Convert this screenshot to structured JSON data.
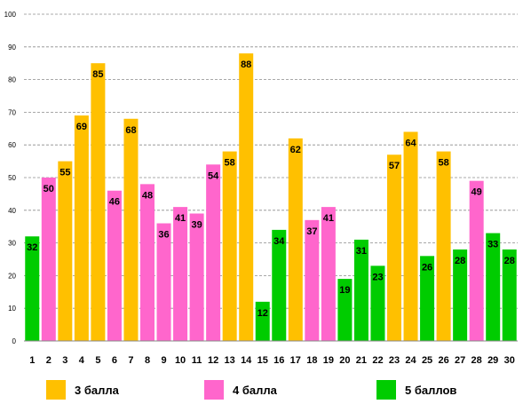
{
  "chart_data": {
    "type": "bar",
    "title": "",
    "xlabel": "",
    "ylabel": "",
    "ylim": [
      0,
      100
    ],
    "yticks": [
      0,
      10,
      20,
      30,
      40,
      50,
      60,
      70,
      80,
      90,
      100
    ],
    "grid": "horizontal dashed",
    "legend_position": "bottom",
    "categories": [
      "1",
      "2",
      "3",
      "4",
      "5",
      "6",
      "7",
      "8",
      "9",
      "10",
      "11",
      "12",
      "13",
      "14",
      "15",
      "16",
      "17",
      "18",
      "19",
      "20",
      "21",
      "22",
      "23",
      "24",
      "25",
      "26",
      "27",
      "28",
      "29",
      "30"
    ],
    "values": [
      32,
      50,
      55,
      69,
      85,
      46,
      68,
      48,
      36,
      41,
      39,
      54,
      58,
      88,
      12,
      34,
      62,
      37,
      41,
      19,
      31,
      23,
      57,
      64,
      26,
      58,
      28,
      49,
      33,
      28
    ],
    "groups": [
      5,
      4,
      3,
      3,
      3,
      4,
      3,
      4,
      4,
      4,
      4,
      4,
      3,
      3,
      5,
      5,
      3,
      4,
      4,
      5,
      5,
      5,
      3,
      3,
      5,
      3,
      5,
      4,
      5,
      5
    ],
    "series": [
      {
        "name": "3 балла",
        "group": 3,
        "color": "#FFC000"
      },
      {
        "name": "4 балла",
        "group": 4,
        "color": "#FF66CC"
      },
      {
        "name": "5 баллов",
        "group": 5,
        "color": "#00CC00"
      }
    ]
  }
}
